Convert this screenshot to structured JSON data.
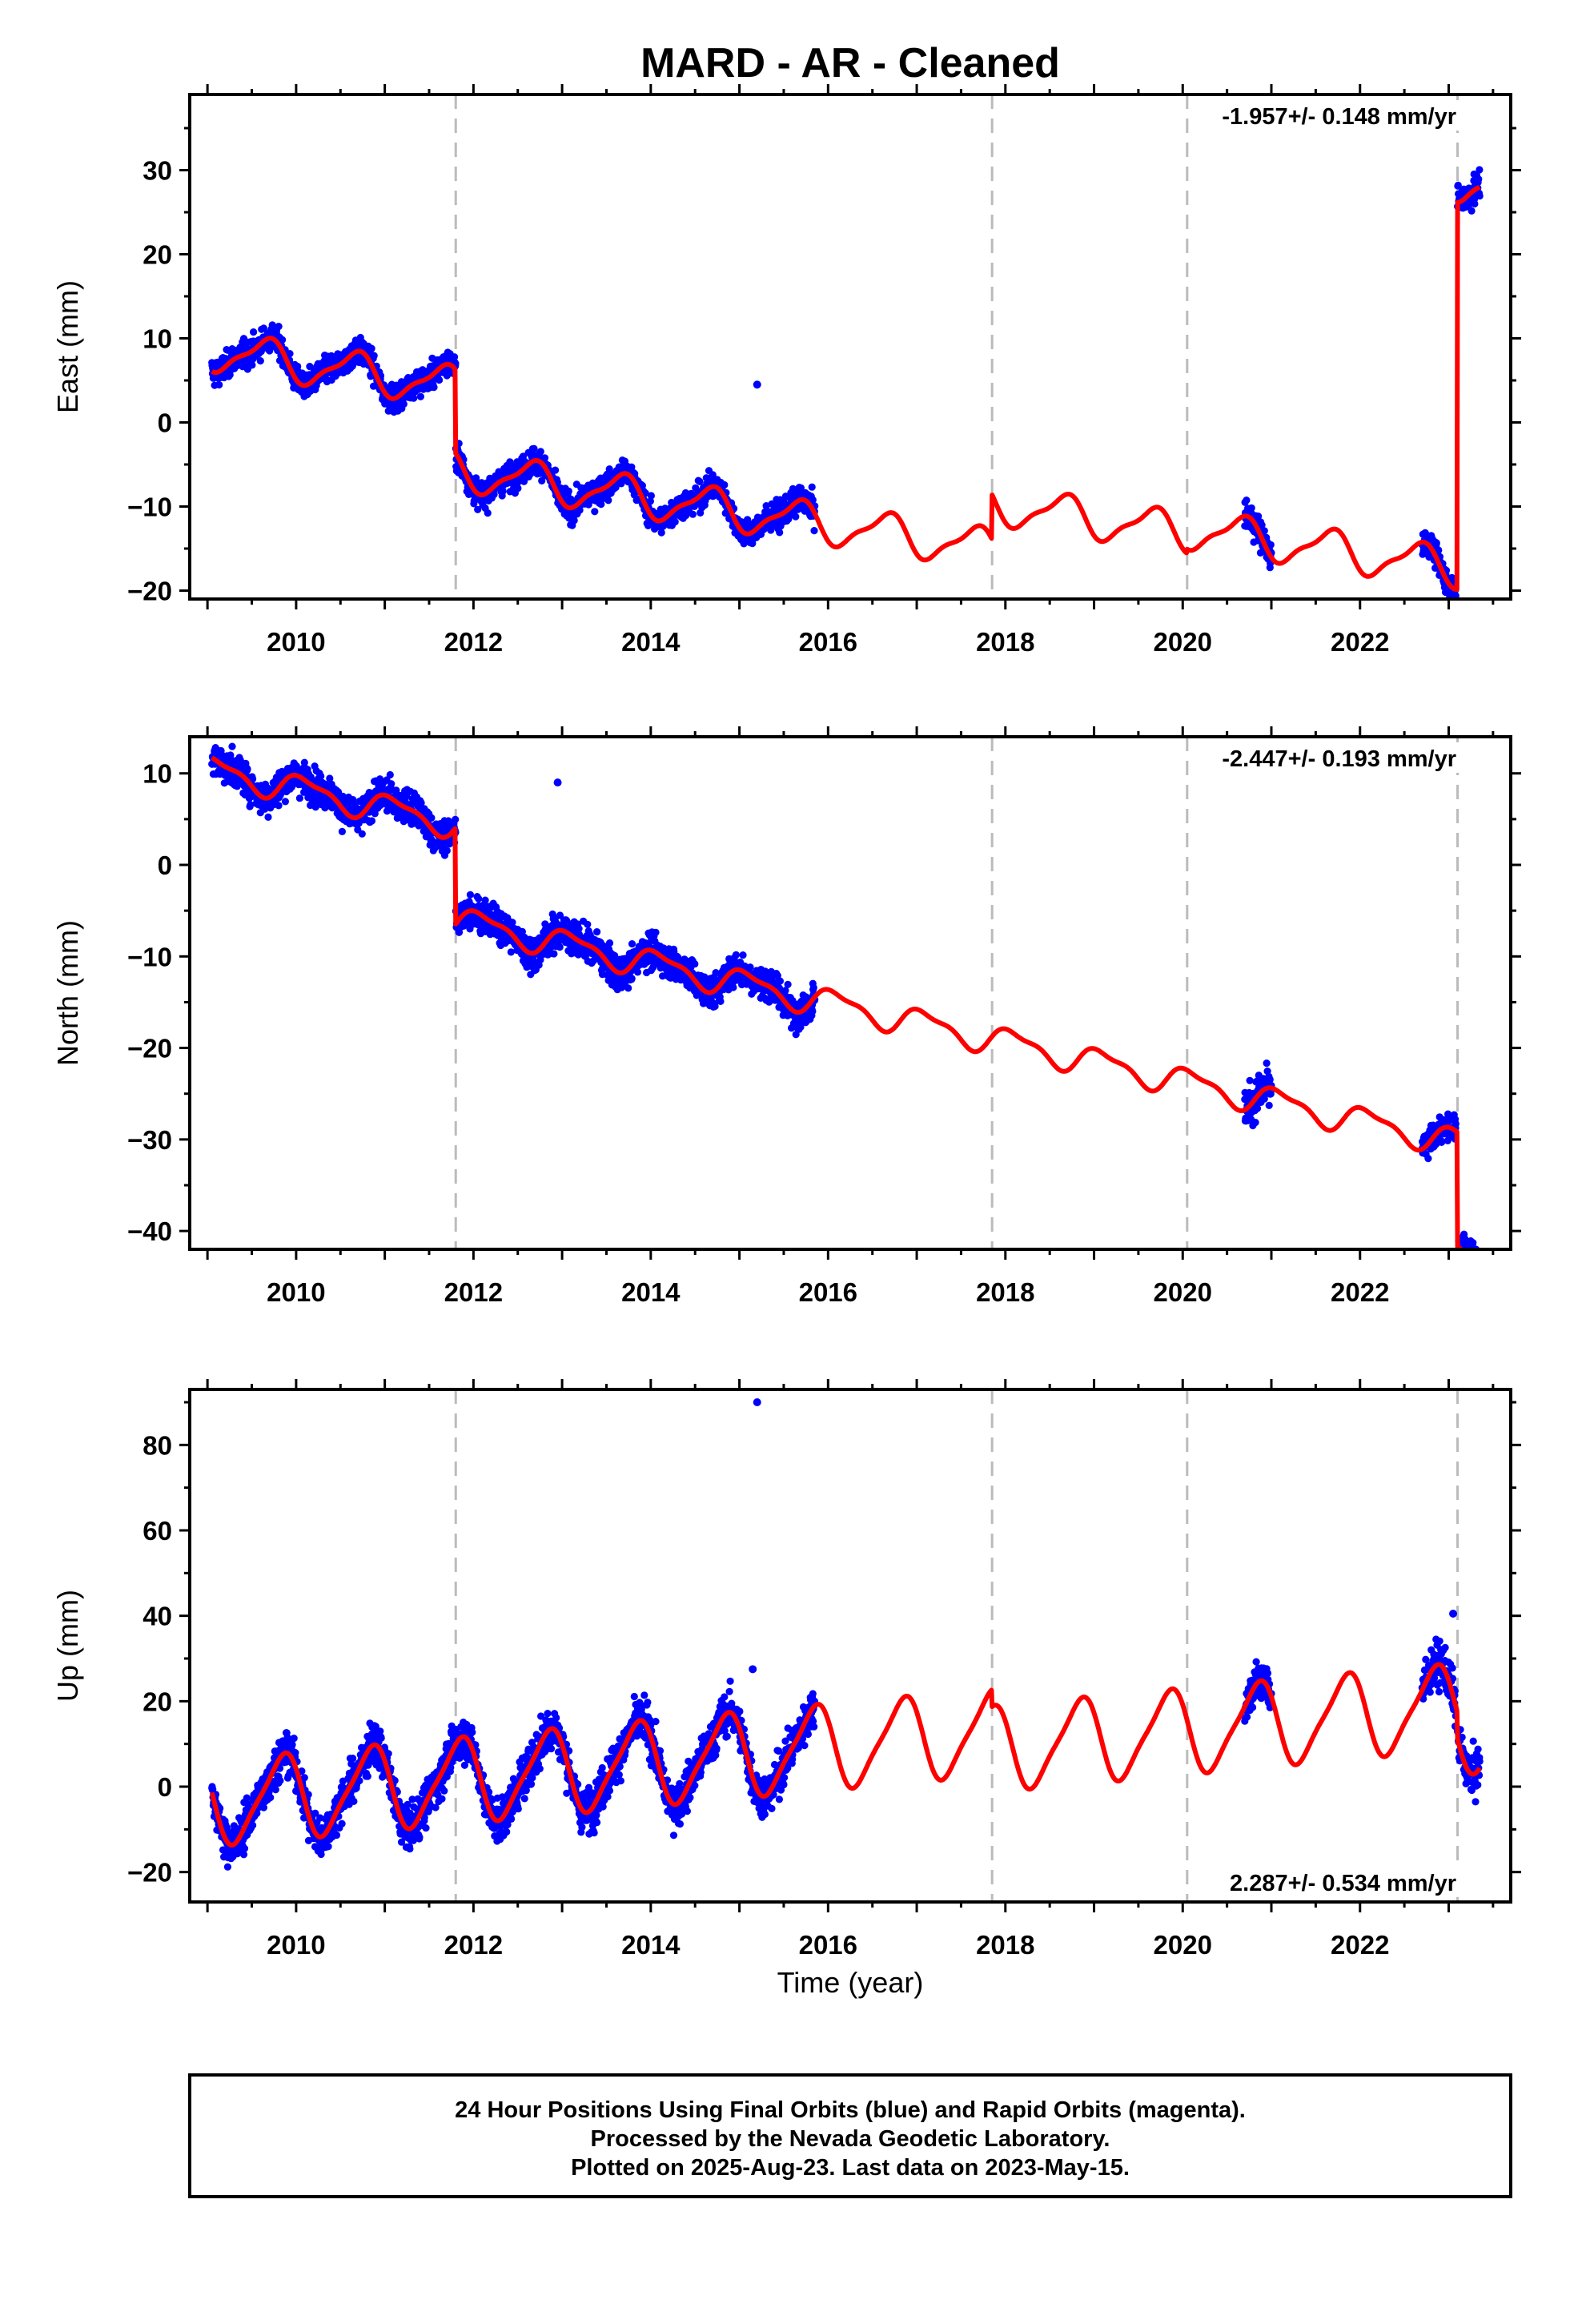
{
  "title": "MARD  - AR - Cleaned",
  "x_axis_title": "Time (year)",
  "footer": {
    "line1": "24 Hour Positions Using Final Orbits (blue) and Rapid Orbits (magenta).",
    "line2": "Processed by the Nevada Geodetic Laboratory.",
    "line3": "Plotted on 2025-Aug-23. Last data on 2023-May-15."
  },
  "colors": {
    "observations": "#0000ff",
    "model": "#ff0000",
    "step_lines": "#bbbbbb",
    "frame": "#000000"
  },
  "chart_data": [
    {
      "type": "scatter",
      "panel": "east",
      "ylabel": "East (mm)",
      "rate_label": "-1.957+/- 0.148 mm/yr",
      "rate_position": "top-right",
      "xlim": [
        2008.8,
        2023.7
      ],
      "ylim": [
        -21,
        39
      ],
      "x_ticks": [
        2010,
        2012,
        2014,
        2016,
        2018,
        2020,
        2022
      ],
      "y_ticks": [
        -20,
        -10,
        0,
        10,
        20,
        30
      ],
      "step_lines_x": [
        2011.8,
        2017.85,
        2020.05,
        2023.1
      ],
      "model": {
        "trend": -1.55,
        "amp1": 2.2,
        "phase1": 0.4,
        "amp2": 0.7,
        "phase2": 0.15,
        "offsets": [
          [
            2008.8,
            8.6
          ],
          [
            2011.8,
            -1.3
          ],
          [
            2017.85,
            4.0
          ],
          [
            2020.05,
            4.5
          ],
          [
            2023.1,
            50.5
          ]
        ]
      },
      "observation_segments": [
        {
          "start": 2009.05,
          "end": 2015.85,
          "scatter": 1.3
        },
        {
          "start": 2020.7,
          "end": 2021.0,
          "scatter": 1.5
        },
        {
          "start": 2022.7,
          "end": 2023.08,
          "scatter": 1.2
        },
        {
          "start": 2023.1,
          "end": 2023.35,
          "scatter": 1.5
        }
      ],
      "outliers": [
        {
          "x": 2015.2,
          "y": 4.5
        }
      ]
    },
    {
      "type": "scatter",
      "panel": "north",
      "ylabel": "North (mm)",
      "rate_label": "-2.447+/- 0.193 mm/yr",
      "rate_position": "top-right",
      "xlim": [
        2008.8,
        2023.7
      ],
      "ylim": [
        -42,
        14
      ],
      "x_ticks": [
        2010,
        2012,
        2014,
        2016,
        2018,
        2020,
        2022
      ],
      "y_ticks": [
        -40,
        -30,
        -20,
        -10,
        0,
        10
      ],
      "step_lines_x": [
        2011.8,
        2017.85,
        2020.05,
        2023.1
      ],
      "model": {
        "trend": -2.15,
        "amp1": 1.4,
        "phase1": 0.85,
        "amp2": 0.5,
        "phase2": 0.3,
        "offsets": [
          [
            2008.8,
            10.5
          ],
          [
            2011.8,
            0.0
          ],
          [
            2017.85,
            0.0
          ],
          [
            2020.05,
            0.0
          ],
          [
            2023.1,
            -12.5
          ]
        ]
      },
      "observation_segments": [
        {
          "start": 2009.05,
          "end": 2015.85,
          "scatter": 1.5
        },
        {
          "start": 2020.7,
          "end": 2021.0,
          "scatter": 1.8
        },
        {
          "start": 2022.7,
          "end": 2023.08,
          "scatter": 1.3
        },
        {
          "start": 2023.1,
          "end": 2023.35,
          "scatter": 1.5
        }
      ],
      "outliers": [
        {
          "x": 2012.95,
          "y": 9.0
        },
        {
          "x": 2013.2,
          "y": -9.5
        }
      ]
    },
    {
      "type": "scatter",
      "panel": "up",
      "ylabel": "Up (mm)",
      "rate_label": "2.287+/- 0.534 mm/yr",
      "rate_position": "bottom-right",
      "xlim": [
        2008.8,
        2023.7
      ],
      "ylim": [
        -27,
        93
      ],
      "x_ticks": [
        2010,
        2012,
        2014,
        2016,
        2018,
        2020,
        2022
      ],
      "y_ticks": [
        -20,
        0,
        20,
        40,
        60,
        80
      ],
      "step_lines_x": [
        2011.8,
        2017.85,
        2020.05,
        2023.1
      ],
      "model": {
        "trend": 1.9,
        "amp1": 9.5,
        "phase1": 0.58,
        "amp2": 2.0,
        "phase2": 0.33,
        "offsets": [
          [
            2008.8,
            -4.0
          ],
          [
            2011.8,
            -4.0
          ],
          [
            2017.85,
            -8.0
          ],
          [
            2020.05,
            -8.0
          ],
          [
            2023.1,
            -14.0
          ]
        ]
      },
      "observation_segments": [
        {
          "start": 2009.05,
          "end": 2015.85,
          "scatter": 4.0
        },
        {
          "start": 2020.7,
          "end": 2021.0,
          "scatter": 4.0
        },
        {
          "start": 2022.7,
          "end": 2023.08,
          "scatter": 4.0
        },
        {
          "start": 2023.1,
          "end": 2023.35,
          "scatter": 4.0
        }
      ],
      "outliers": [
        {
          "x": 2015.2,
          "y": 90.0
        },
        {
          "x": 2023.05,
          "y": 40.5
        },
        {
          "x": 2015.15,
          "y": 27.5
        }
      ]
    }
  ]
}
